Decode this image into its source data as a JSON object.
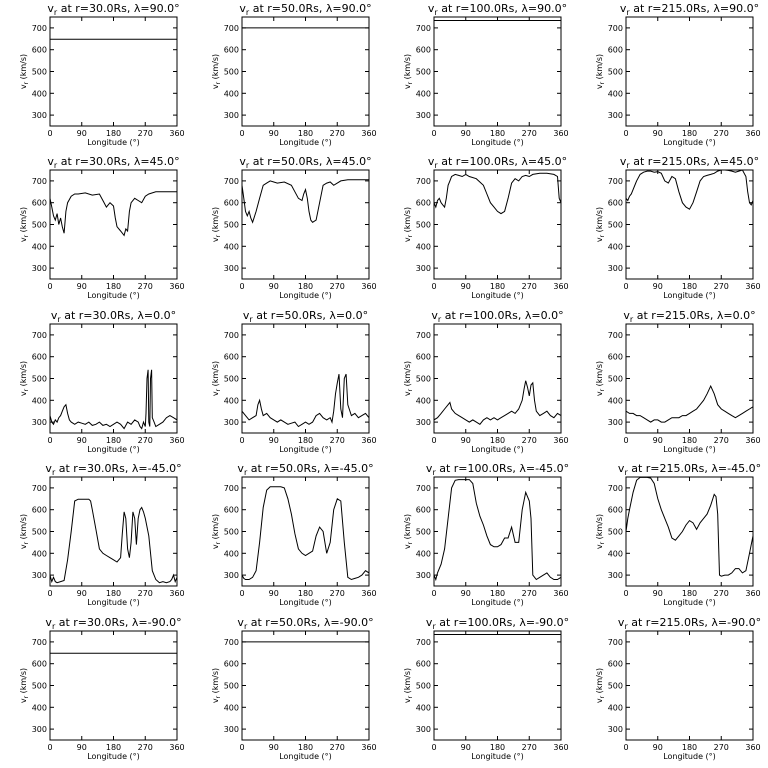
{
  "figure": {
    "xlabel": "Longitude (°)",
    "ylabel": "v",
    "ylabel_sub": "r",
    "ylabel_unit": "(km/s)"
  },
  "chart_data": {
    "type": "line",
    "layout": "grid 5 rows x 4 columns",
    "xlim": [
      0,
      360
    ],
    "ylim": [
      250,
      750
    ],
    "xticks": [
      0,
      90,
      180,
      270,
      360
    ],
    "yticks": [
      300,
      400,
      500,
      600,
      700
    ],
    "radii": [
      "30.0Rs",
      "50.0Rs",
      "100.0Rs",
      "215.0Rs"
    ],
    "latitudes": [
      "90.0°",
      "45.0°",
      "0.0°",
      "-45.0°",
      "-90.0°"
    ],
    "panels": [
      {
        "title_r": "30.0Rs",
        "title_lat": "90.0°",
        "x": [
          0,
          360
        ],
        "y": [
          648,
          648
        ]
      },
      {
        "title_r": "50.0Rs",
        "title_lat": "90.0°",
        "x": [
          0,
          360
        ],
        "y": [
          700,
          700
        ]
      },
      {
        "title_r": "100.0Rs",
        "title_lat": "90.0°",
        "x": [
          0,
          360
        ],
        "y": [
          734,
          734
        ]
      },
      {
        "title_r": "215.0Rs",
        "title_lat": "90.0°",
        "x": [
          0,
          360
        ],
        "y": [
          752,
          752
        ]
      },
      {
        "title_r": "30.0Rs",
        "title_lat": "45.0°",
        "x": [
          0,
          5,
          10,
          15,
          20,
          25,
          30,
          35,
          40,
          45,
          50,
          60,
          70,
          80,
          100,
          120,
          140,
          150,
          160,
          170,
          180,
          185,
          190,
          200,
          210,
          215,
          220,
          225,
          230,
          240,
          250,
          260,
          270,
          280,
          300,
          320,
          340,
          360
        ],
        "y": [
          620,
          580,
          540,
          520,
          550,
          500,
          530,
          490,
          460,
          560,
          600,
          630,
          640,
          640,
          645,
          635,
          640,
          610,
          580,
          600,
          585,
          530,
          490,
          470,
          450,
          480,
          470,
          560,
          600,
          620,
          610,
          600,
          630,
          640,
          650,
          650,
          650,
          650
        ]
      },
      {
        "title_r": "50.0Rs",
        "title_lat": "45.0°",
        "x": [
          0,
          5,
          10,
          15,
          20,
          25,
          30,
          40,
          50,
          60,
          70,
          80,
          90,
          100,
          120,
          140,
          150,
          160,
          170,
          175,
          180,
          185,
          190,
          195,
          200,
          210,
          220,
          230,
          240,
          250,
          260,
          270,
          280,
          300,
          320,
          340,
          360
        ],
        "y": [
          680,
          620,
          560,
          540,
          560,
          530,
          510,
          560,
          620,
          680,
          690,
          700,
          695,
          690,
          695,
          680,
          650,
          620,
          610,
          640,
          660,
          620,
          560,
          520,
          510,
          520,
          600,
          680,
          690,
          695,
          680,
          690,
          700,
          705,
          705,
          705,
          705
        ]
      },
      {
        "title_r": "100.0Rs",
        "title_lat": "45.0°",
        "x": [
          0,
          5,
          10,
          15,
          20,
          25,
          30,
          35,
          40,
          45,
          50,
          60,
          70,
          80,
          90,
          100,
          120,
          140,
          150,
          160,
          170,
          180,
          190,
          200,
          210,
          220,
          230,
          240,
          250,
          260,
          270,
          280,
          300,
          320,
          340,
          350,
          355,
          360
        ],
        "y": [
          600,
          580,
          610,
          620,
          600,
          590,
          580,
          620,
          680,
          700,
          720,
          730,
          725,
          720,
          730,
          720,
          710,
          680,
          640,
          600,
          580,
          560,
          550,
          560,
          620,
          690,
          710,
          700,
          720,
          725,
          720,
          730,
          735,
          735,
          730,
          720,
          620,
          600
        ]
      },
      {
        "title_r": "215.0Rs",
        "title_lat": "45.0°",
        "x": [
          0,
          5,
          10,
          15,
          20,
          30,
          40,
          50,
          60,
          70,
          80,
          90,
          100,
          110,
          120,
          130,
          140,
          150,
          160,
          170,
          180,
          190,
          200,
          210,
          220,
          230,
          240,
          250,
          260,
          270,
          280,
          290,
          300,
          310,
          320,
          330,
          340,
          345,
          350,
          355,
          360
        ],
        "y": [
          620,
          610,
          630,
          640,
          660,
          700,
          730,
          740,
          745,
          745,
          740,
          742,
          735,
          700,
          690,
          720,
          710,
          650,
          600,
          580,
          570,
          600,
          650,
          700,
          720,
          725,
          730,
          735,
          745,
          750,
          750,
          748,
          745,
          740,
          745,
          750,
          720,
          650,
          600,
          590,
          610
        ]
      },
      {
        "title_r": "30.0Rs",
        "title_lat": "0.0°",
        "x": [
          0,
          5,
          10,
          15,
          20,
          25,
          30,
          35,
          40,
          45,
          50,
          55,
          60,
          70,
          80,
          90,
          100,
          110,
          120,
          130,
          140,
          150,
          160,
          170,
          180,
          190,
          200,
          210,
          220,
          230,
          240,
          250,
          255,
          260,
          265,
          270,
          272,
          275,
          278,
          280,
          283,
          285,
          288,
          290,
          295,
          300,
          310,
          320,
          330,
          340,
          350,
          360
        ],
        "y": [
          330,
          300,
          290,
          310,
          300,
          320,
          330,
          350,
          370,
          380,
          340,
          310,
          300,
          290,
          300,
          295,
          290,
          300,
          285,
          290,
          300,
          285,
          290,
          280,
          290,
          300,
          290,
          270,
          300,
          290,
          310,
          300,
          280,
          270,
          300,
          280,
          340,
          500,
          540,
          300,
          280,
          500,
          540,
          320,
          300,
          280,
          290,
          300,
          320,
          330,
          320,
          310
        ]
      },
      {
        "title_r": "50.0Rs",
        "title_lat": "0.0°",
        "x": [
          0,
          10,
          20,
          30,
          40,
          45,
          50,
          55,
          60,
          70,
          80,
          90,
          100,
          110,
          120,
          130,
          140,
          150,
          160,
          170,
          180,
          190,
          200,
          210,
          220,
          230,
          240,
          250,
          255,
          260,
          265,
          270,
          275,
          280,
          285,
          290,
          295,
          300,
          310,
          320,
          330,
          340,
          350,
          360
        ],
        "y": [
          350,
          330,
          310,
          320,
          330,
          380,
          400,
          360,
          330,
          340,
          320,
          310,
          300,
          310,
          300,
          290,
          295,
          300,
          280,
          290,
          300,
          290,
          300,
          330,
          340,
          320,
          310,
          320,
          300,
          350,
          430,
          480,
          520,
          360,
          320,
          500,
          520,
          380,
          330,
          340,
          320,
          330,
          340,
          320
        ]
      },
      {
        "title_r": "100.0Rs",
        "title_lat": "0.0°",
        "x": [
          0,
          10,
          20,
          30,
          40,
          45,
          50,
          55,
          60,
          70,
          80,
          90,
          100,
          110,
          120,
          130,
          140,
          150,
          160,
          170,
          180,
          190,
          200,
          210,
          220,
          230,
          240,
          250,
          255,
          260,
          265,
          270,
          275,
          280,
          285,
          290,
          300,
          310,
          320,
          330,
          340,
          350,
          360
        ],
        "y": [
          310,
          320,
          340,
          360,
          380,
          390,
          360,
          350,
          340,
          330,
          320,
          310,
          300,
          310,
          300,
          290,
          310,
          320,
          310,
          320,
          310,
          320,
          330,
          340,
          350,
          340,
          360,
          400,
          450,
          490,
          460,
          420,
          470,
          480,
          400,
          350,
          330,
          340,
          350,
          330,
          320,
          340,
          330
        ]
      },
      {
        "title_r": "215.0Rs",
        "title_lat": "0.0°",
        "x": [
          0,
          10,
          20,
          30,
          40,
          50,
          60,
          70,
          80,
          90,
          100,
          110,
          120,
          130,
          140,
          150,
          160,
          170,
          180,
          190,
          200,
          210,
          220,
          230,
          240,
          250,
          260,
          270,
          280,
          290,
          300,
          310,
          320,
          330,
          340,
          350,
          360
        ],
        "y": [
          350,
          340,
          340,
          330,
          330,
          320,
          310,
          300,
          310,
          310,
          300,
          300,
          310,
          320,
          320,
          320,
          330,
          330,
          340,
          350,
          360,
          380,
          400,
          430,
          465,
          430,
          380,
          360,
          350,
          340,
          330,
          320,
          330,
          340,
          350,
          360,
          370
        ]
      },
      {
        "title_r": "30.0Rs",
        "title_lat": "-45.0°",
        "x": [
          0,
          5,
          10,
          15,
          20,
          30,
          40,
          50,
          60,
          70,
          80,
          90,
          100,
          110,
          115,
          120,
          130,
          140,
          150,
          160,
          170,
          180,
          190,
          200,
          205,
          210,
          215,
          220,
          225,
          230,
          235,
          240,
          245,
          250,
          255,
          260,
          265,
          270,
          280,
          290,
          300,
          310,
          320,
          330,
          340,
          345,
          350,
          355,
          360
        ],
        "y": [
          300,
          270,
          290,
          270,
          265,
          270,
          275,
          370,
          500,
          640,
          648,
          648,
          648,
          648,
          640,
          600,
          510,
          420,
          400,
          390,
          380,
          370,
          360,
          380,
          490,
          590,
          560,
          420,
          380,
          450,
          590,
          560,
          440,
          560,
          600,
          610,
          590,
          560,
          480,
          320,
          280,
          265,
          270,
          265,
          270,
          280,
          300,
          270,
          290
        ]
      },
      {
        "title_r": "50.0Rs",
        "title_lat": "-45.0°",
        "x": [
          0,
          5,
          10,
          20,
          30,
          40,
          50,
          60,
          70,
          80,
          90,
          100,
          110,
          120,
          130,
          140,
          150,
          160,
          170,
          180,
          190,
          200,
          210,
          220,
          230,
          240,
          250,
          260,
          270,
          280,
          290,
          300,
          310,
          320,
          330,
          340,
          350,
          360
        ],
        "y": [
          300,
          285,
          280,
          280,
          290,
          320,
          450,
          610,
          690,
          705,
          705,
          705,
          705,
          700,
          650,
          580,
          490,
          420,
          400,
          390,
          400,
          410,
          480,
          520,
          500,
          400,
          450,
          600,
          650,
          640,
          450,
          290,
          280,
          285,
          290,
          300,
          320,
          310
        ]
      },
      {
        "title_r": "100.0Rs",
        "title_lat": "-45.0°",
        "x": [
          0,
          5,
          10,
          20,
          30,
          40,
          50,
          60,
          70,
          80,
          90,
          100,
          110,
          120,
          130,
          140,
          150,
          160,
          170,
          180,
          190,
          200,
          210,
          220,
          230,
          240,
          250,
          260,
          270,
          275,
          280,
          290,
          300,
          310,
          320,
          330,
          340,
          350,
          360
        ],
        "y": [
          300,
          280,
          310,
          350,
          420,
          560,
          700,
          735,
          738,
          738,
          738,
          738,
          720,
          630,
          570,
          530,
          480,
          440,
          430,
          430,
          440,
          470,
          470,
          520,
          450,
          450,
          600,
          680,
          640,
          560,
          300,
          280,
          290,
          300,
          310,
          290,
          280,
          280,
          290
        ]
      },
      {
        "title_r": "215.0Rs",
        "title_lat": "-45.0°",
        "x": [
          0,
          5,
          10,
          20,
          30,
          40,
          50,
          60,
          70,
          80,
          90,
          100,
          110,
          120,
          130,
          140,
          150,
          160,
          170,
          180,
          190,
          200,
          210,
          220,
          230,
          240,
          250,
          255,
          260,
          265,
          270,
          280,
          290,
          300,
          310,
          320,
          330,
          340,
          350,
          360
        ],
        "y": [
          500,
          560,
          600,
          680,
          735,
          748,
          748,
          748,
          745,
          720,
          650,
          600,
          560,
          520,
          470,
          460,
          480,
          500,
          530,
          550,
          540,
          510,
          540,
          560,
          580,
          620,
          670,
          660,
          580,
          300,
          295,
          300,
          300,
          310,
          330,
          330,
          310,
          320,
          400,
          480
        ]
      },
      {
        "title_r": "30.0Rs",
        "title_lat": "-90.0°",
        "x": [
          0,
          360
        ],
        "y": [
          648,
          648
        ]
      },
      {
        "title_r": "50.0Rs",
        "title_lat": "-90.0°",
        "x": [
          0,
          360
        ],
        "y": [
          700,
          700
        ]
      },
      {
        "title_r": "100.0Rs",
        "title_lat": "-90.0°",
        "x": [
          0,
          360
        ],
        "y": [
          734,
          734
        ]
      },
      {
        "title_r": "215.0Rs",
        "title_lat": "-90.0°",
        "x": [
          0,
          360
        ],
        "y": [
          752,
          752
        ]
      }
    ]
  }
}
